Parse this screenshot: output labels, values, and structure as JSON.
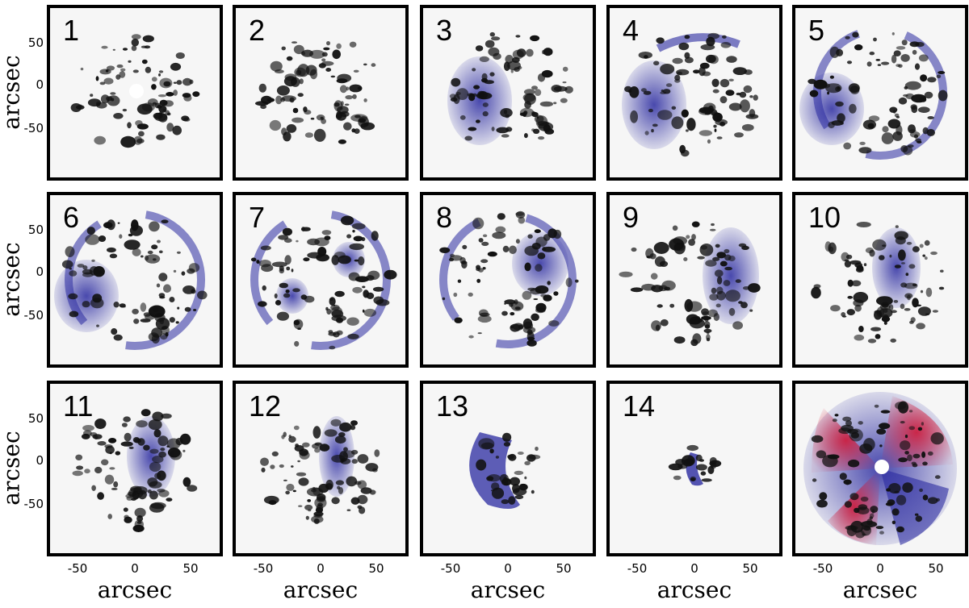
{
  "figure": {
    "panel_labels": [
      "1",
      "2",
      "3",
      "4",
      "5",
      "6",
      "7",
      "8",
      "9",
      "10",
      "11",
      "12",
      "13",
      "14",
      ""
    ],
    "y_axis_label": "arcsec",
    "x_axis_label": "arcsec",
    "y_ticks": [
      "50",
      "0",
      "-50"
    ],
    "x_ticks": [
      "-50",
      "0",
      "50"
    ],
    "colors": {
      "blue": "#2a2aa0",
      "red": "#d01030",
      "blob": "#111111"
    }
  }
}
